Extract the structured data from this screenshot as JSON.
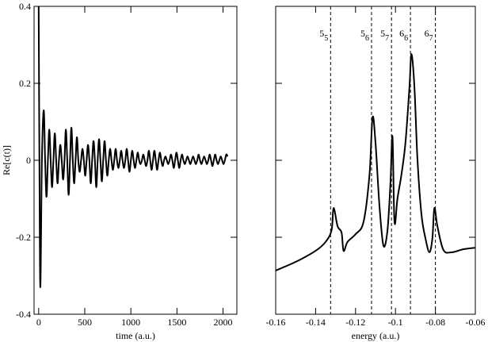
{
  "chart_data": [
    {
      "type": "line",
      "xlabel": "time (a.u.)",
      "ylabel": "Re[c(t)]",
      "xlim": [
        -50,
        2150
      ],
      "ylim": [
        -0.4,
        0.4
      ],
      "xticks": [
        0,
        500,
        1000,
        1500,
        2000
      ],
      "yticks": [
        -0.4,
        -0.2,
        0,
        0.2,
        0.4
      ],
      "ytick_labels": true,
      "color": "#000000",
      "x": [
        0,
        8,
        18,
        35,
        55,
        70,
        85,
        100,
        115,
        130,
        145,
        160,
        175,
        190,
        205,
        220,
        235,
        250,
        265,
        280,
        295,
        310,
        325,
        340,
        355,
        370,
        385,
        400,
        415,
        430,
        445,
        460,
        475,
        490,
        505,
        520,
        535,
        550,
        565,
        580,
        595,
        610,
        625,
        640,
        655,
        670,
        685,
        700,
        715,
        730,
        745,
        760,
        775,
        790,
        805,
        820,
        835,
        850,
        865,
        880,
        895,
        910,
        925,
        940,
        955,
        970,
        985,
        1000,
        1015,
        1030,
        1045,
        1060,
        1075,
        1090,
        1105,
        1120,
        1135,
        1150,
        1165,
        1180,
        1195,
        1210,
        1225,
        1240,
        1255,
        1270,
        1285,
        1300,
        1315,
        1330,
        1345,
        1360,
        1375,
        1390,
        1405,
        1420,
        1435,
        1450,
        1465,
        1480,
        1495,
        1510,
        1525,
        1540,
        1555,
        1570,
        1585,
        1600,
        1615,
        1630,
        1645,
        1660,
        1675,
        1690,
        1705,
        1720,
        1735,
        1750,
        1765,
        1780,
        1795,
        1810,
        1825,
        1840,
        1855,
        1870,
        1885,
        1900,
        1915,
        1930,
        1945,
        1960,
        1975,
        1990,
        2005,
        2020,
        2035,
        2050
      ],
      "values": [
        0.4,
        0.0,
        -0.33,
        0.0,
        0.13,
        0,
        -0.095,
        0,
        0.08,
        0,
        -0.07,
        0,
        0.07,
        0,
        -0.06,
        0,
        0.04,
        0,
        -0.05,
        0,
        0.08,
        0,
        -0.09,
        0,
        0.085,
        0,
        -0.06,
        0,
        0.06,
        0,
        -0.03,
        0,
        0.03,
        0,
        -0.04,
        0,
        0.04,
        0,
        -0.06,
        0,
        0.05,
        0,
        -0.07,
        0,
        0.055,
        0,
        -0.055,
        0,
        0.05,
        0,
        -0.04,
        0,
        0.03,
        0,
        -0.025,
        0,
        0.03,
        0,
        -0.02,
        0,
        0.025,
        0,
        -0.02,
        0,
        0.03,
        0,
        -0.03,
        0,
        0.025,
        0,
        -0.02,
        0,
        0.02,
        0,
        -0.01,
        0,
        0.015,
        0,
        -0.015,
        0,
        0.025,
        0,
        -0.025,
        0,
        0.025,
        0,
        -0.025,
        0,
        0.02,
        0,
        -0.015,
        0,
        0.01,
        0,
        -0.01,
        0,
        0.015,
        0,
        -0.02,
        0,
        0.02,
        0,
        -0.02,
        0,
        0.015,
        0,
        -0.01,
        0,
        0.01,
        0,
        -0.01,
        0,
        0.01,
        0,
        -0.01,
        0,
        0.015,
        0,
        -0.01,
        0,
        0.01,
        0,
        -0.01,
        0,
        0.015,
        0,
        -0.015,
        0,
        0.015,
        0,
        -0.01,
        0,
        0.01,
        0,
        -0.01,
        0,
        0.015,
        0.01
      ]
    },
    {
      "type": "line",
      "xlabel": "energy (a.u.)",
      "xlim": [
        -0.16,
        -0.06
      ],
      "ylim": [
        0,
        1
      ],
      "xticks": [
        -0.16,
        -0.14,
        -0.12,
        -0.1,
        -0.08,
        -0.06
      ],
      "yticks": [
        0,
        0.25,
        0.5,
        0.75,
        1
      ],
      "ytick_labels": false,
      "color": "#000000",
      "x": [
        -0.16,
        -0.15,
        -0.14,
        -0.135,
        -0.132,
        -0.131,
        -0.129,
        -0.127,
        -0.126,
        -0.124,
        -0.12,
        -0.116,
        -0.113,
        -0.1115,
        -0.11,
        -0.108,
        -0.106,
        -0.104,
        -0.1025,
        -0.1015,
        -0.1005,
        -0.099,
        -0.097,
        -0.095,
        -0.093,
        -0.092,
        -0.0905,
        -0.089,
        -0.087,
        -0.085,
        -0.083,
        -0.0815,
        -0.0805,
        -0.079,
        -0.076,
        -0.072,
        -0.066,
        -0.06
      ],
      "values": [
        0.142,
        0.17,
        0.206,
        0.235,
        0.273,
        0.345,
        0.286,
        0.265,
        0.206,
        0.235,
        0.26,
        0.3,
        0.454,
        0.639,
        0.557,
        0.35,
        0.222,
        0.273,
        0.428,
        0.577,
        0.3,
        0.376,
        0.454,
        0.557,
        0.737,
        0.845,
        0.737,
        0.505,
        0.325,
        0.247,
        0.201,
        0.247,
        0.345,
        0.286,
        0.209,
        0.201,
        0.211,
        0.216
      ],
      "annotations": [
        {
          "x": -0.1325,
          "base": "5",
          "subscript": "5"
        },
        {
          "x": -0.112,
          "base": "5",
          "subscript": "6"
        },
        {
          "x": -0.102,
          "base": "5",
          "subscript": "7"
        },
        {
          "x": -0.0925,
          "base": "6",
          "subscript": "6"
        },
        {
          "x": -0.08,
          "base": "6",
          "subscript": "7"
        }
      ]
    }
  ]
}
